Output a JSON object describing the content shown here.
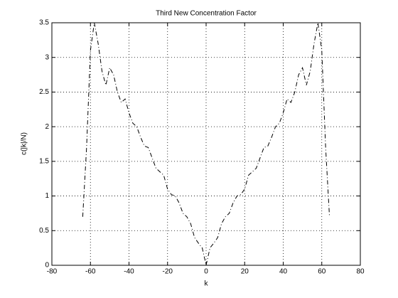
{
  "chart_data": {
    "type": "line",
    "title": "Third New Concentration Factor",
    "xlabel": "k",
    "ylabel": "c(|k|/N)",
    "x": [
      -64,
      -62,
      -60,
      -58,
      -56,
      -54,
      -52,
      -50,
      -48,
      -46,
      -44,
      -42,
      -40,
      -38,
      -36,
      -34,
      -32,
      -30,
      -28,
      -26,
      -24,
      -22,
      -20,
      -18,
      -16,
      -14,
      -12,
      -10,
      -8,
      -6,
      -4,
      -2,
      0,
      2,
      4,
      6,
      8,
      10,
      12,
      14,
      16,
      18,
      20,
      22,
      24,
      26,
      28,
      30,
      32,
      34,
      36,
      38,
      40,
      42,
      44,
      46,
      48,
      50,
      52,
      54,
      56,
      58,
      60,
      62,
      64
    ],
    "series": [
      {
        "name": "c",
        "color": "#000000",
        "values": [
          0.7,
          1.7,
          3.1,
          3.5,
          3.2,
          2.8,
          2.6,
          2.85,
          2.75,
          2.5,
          2.35,
          2.4,
          2.2,
          2.05,
          2.0,
          1.85,
          1.72,
          1.7,
          1.55,
          1.4,
          1.35,
          1.3,
          1.1,
          1.02,
          1.0,
          0.9,
          0.75,
          0.7,
          0.6,
          0.4,
          0.32,
          0.25,
          0,
          0.25,
          0.32,
          0.4,
          0.6,
          0.7,
          0.75,
          0.9,
          1.0,
          1.02,
          1.1,
          1.3,
          1.35,
          1.4,
          1.55,
          1.7,
          1.72,
          1.85,
          2.0,
          2.05,
          2.2,
          2.4,
          2.35,
          2.5,
          2.75,
          2.85,
          2.6,
          2.8,
          3.2,
          3.5,
          3.1,
          1.7,
          0.7
        ]
      }
    ],
    "xlim": [
      -80,
      80
    ],
    "xticks": [
      -80,
      -60,
      -40,
      -20,
      0,
      20,
      40,
      60,
      80
    ],
    "ylim": [
      0,
      3.5
    ],
    "yticks": [
      0,
      0.5,
      1,
      1.5,
      2,
      2.5,
      3,
      3.5
    ],
    "grid": true
  }
}
